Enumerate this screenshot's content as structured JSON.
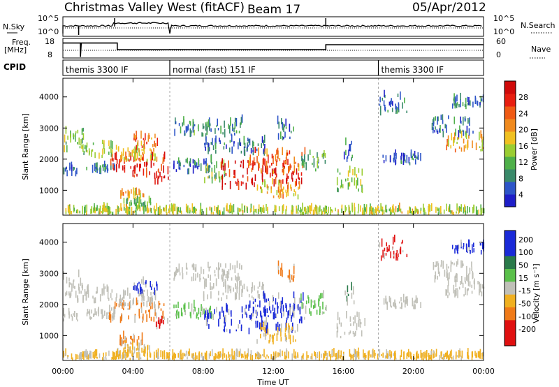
{
  "chart_data": {
    "type": "heatmap",
    "title": {
      "radar": "Christmas Valley West (fitACF)",
      "beam": "Beam 17",
      "date": "05/Apr/2012"
    },
    "summary": {
      "nsky_label": "N.Sky",
      "nsearch_label": "N.Search",
      "nsky_ticks": [
        "10^5",
        "10^0"
      ],
      "freq_label": [
        "Freq.",
        "[MHz]"
      ],
      "freq_ticks": [
        "18",
        "8"
      ],
      "nave_label": "Nave",
      "nave_ticks": [
        "60",
        "0"
      ],
      "cpid_label": "CPID",
      "cpid_segments": [
        {
          "label": "themis 3300 IF",
          "start_hr": 0,
          "end_hr": 6.1
        },
        {
          "label": "normal (fast) 151 IF",
          "start_hr": 6.1,
          "end_hr": 18
        },
        {
          "label": "themis 3300 IF",
          "start_hr": 18,
          "end_hr": 24
        }
      ],
      "freq_series_mhz": [
        [
          0,
          16.5
        ],
        [
          1,
          16.5
        ],
        [
          1,
          8.2
        ],
        [
          1.05,
          16.5
        ],
        [
          3.1,
          16.5
        ],
        [
          3.1,
          12.5
        ],
        [
          6.1,
          12.5
        ],
        [
          6.1,
          12.6
        ],
        [
          15,
          12.6
        ],
        [
          15,
          15.5
        ],
        [
          24,
          15.5
        ]
      ],
      "nsky_spikes_hr": [
        2.95,
        15.0
      ]
    },
    "panels": [
      {
        "ylabel": "Slant Range [km]",
        "ylim": [
          200,
          4600
        ],
        "yticks": [
          1000,
          2000,
          3000,
          4000
        ],
        "colorbar": {
          "label": "Power [dB]",
          "ticks": [
            4,
            8,
            12,
            16,
            20,
            24,
            28
          ]
        }
      },
      {
        "ylabel": "Slant Range [km]",
        "ylim": [
          200,
          4600
        ],
        "yticks": [
          1000,
          2000,
          3000,
          4000
        ],
        "colorbar": {
          "label": "Velocity [m s⁻¹]",
          "ticks": [
            200,
            100,
            50,
            15,
            -15,
            -50,
            -100,
            -200
          ]
        }
      }
    ],
    "xaxis": {
      "label": "Time UT",
      "range_hr": [
        0,
        24
      ],
      "tick_labels": [
        "00:00",
        "04:00",
        "08:00",
        "12:00",
        "16:00",
        "20:00",
        "00:00"
      ],
      "tick_hours": [
        0,
        4,
        8,
        12,
        16,
        20,
        24
      ]
    },
    "power_colors": [
      "#1e1ec8",
      "#2d55c8",
      "#3a8a6a",
      "#4fb04a",
      "#9acd32",
      "#f0c020",
      "#f08a1e",
      "#f05a14",
      "#e81e10",
      "#d00a0a"
    ],
    "velocity_colors": {
      "pos_high": "#1a2ad8",
      "pos_mid": "#2a7a4a",
      "pos_low": "#5ac04a",
      "ground": "#c0c0b8",
      "neg_low": "#f0b020",
      "neg_mid": "#f07a18",
      "neg_high": "#e01010"
    },
    "regions": [
      {
        "t0": 0,
        "t1": 1.3,
        "r0": 2200,
        "r1": 2900,
        "p": 11,
        "v": "ground"
      },
      {
        "t0": 0,
        "t1": 0.8,
        "r0": 1450,
        "r1": 1700,
        "p": 7,
        "v": "ground"
      },
      {
        "t0": 0.8,
        "t1": 2.8,
        "r0": 2000,
        "r1": 2500,
        "p": 13,
        "v": "ground"
      },
      {
        "t0": 1.3,
        "t1": 3.0,
        "r0": 1500,
        "r1": 1750,
        "p": 7,
        "v": "ground"
      },
      {
        "t0": 2.6,
        "t1": 5.8,
        "r0": 1400,
        "r1": 2000,
        "p": 25,
        "v": "neg_mid"
      },
      {
        "t0": 3.0,
        "t1": 5.4,
        "r0": 1900,
        "r1": 2300,
        "p": 16,
        "v": "ground"
      },
      {
        "t0": 4.0,
        "t1": 5.4,
        "r0": 2300,
        "r1": 2700,
        "p": 22,
        "v": "pos_high"
      },
      {
        "t0": 5.2,
        "t1": 6.0,
        "r0": 1150,
        "r1": 1600,
        "p": 27,
        "v": "neg_high"
      },
      {
        "t0": 3.2,
        "t1": 4.6,
        "r0": 650,
        "r1": 900,
        "p": 19,
        "v": "neg_mid"
      },
      {
        "t0": 3.4,
        "t1": 5.0,
        "r0": 400,
        "r1": 600,
        "p": 10,
        "v": "neg_low"
      },
      {
        "t0": 6.3,
        "t1": 10.2,
        "r0": 2700,
        "r1": 3200,
        "p": 8,
        "v": "ground"
      },
      {
        "t0": 8.0,
        "t1": 11.5,
        "r0": 2100,
        "r1": 2600,
        "p": 5,
        "v": "ground"
      },
      {
        "t0": 6.3,
        "t1": 8.5,
        "r0": 1500,
        "r1": 1900,
        "p": 6,
        "v": "pos_low"
      },
      {
        "t0": 8.0,
        "t1": 9.3,
        "r0": 1200,
        "r1": 1800,
        "p": 12,
        "v": "pos_high"
      },
      {
        "t0": 9.0,
        "t1": 13.6,
        "r0": 1000,
        "r1": 1900,
        "p": 27,
        "v": "pos_high"
      },
      {
        "t0": 10.5,
        "t1": 13.8,
        "r0": 1500,
        "r1": 2200,
        "p": 22,
        "v": "pos_high"
      },
      {
        "t0": 11.0,
        "t1": 13.5,
        "r0": 700,
        "r1": 1200,
        "p": 18,
        "v": "neg_low"
      },
      {
        "t0": 13.5,
        "t1": 15.0,
        "r0": 1600,
        "r1": 2200,
        "p": 10,
        "v": "pos_low"
      },
      {
        "t0": 12.2,
        "t1": 13.2,
        "r0": 2600,
        "r1": 3200,
        "p": 6,
        "v": "neg_mid"
      },
      {
        "t0": 15.6,
        "t1": 17.2,
        "r0": 900,
        "r1": 1600,
        "p": 12,
        "v": "ground"
      },
      {
        "t0": 16.0,
        "t1": 16.6,
        "r0": 1900,
        "r1": 2500,
        "p": 6,
        "v": "pos_mid"
      },
      {
        "t0": 18.2,
        "t1": 20.4,
        "r0": 1800,
        "r1": 2100,
        "p": 5,
        "v": "ground"
      },
      {
        "t0": 21.8,
        "t1": 24,
        "r0": 2200,
        "r1": 2700,
        "p": 17,
        "v": "ground"
      },
      {
        "t0": 21.0,
        "t1": 23.5,
        "r0": 2700,
        "r1": 3300,
        "p": 6,
        "v": "ground"
      },
      {
        "t0": 22.2,
        "t1": 24,
        "r0": 3600,
        "r1": 3900,
        "p": 7,
        "v": "pos_high"
      },
      {
        "t0": 18.0,
        "t1": 19.6,
        "r0": 3400,
        "r1": 4000,
        "p": 6,
        "v": "neg_high"
      },
      {
        "t0": 0,
        "t1": 24,
        "r0": 200,
        "r1": 350,
        "p": 14,
        "v": "neg_low"
      }
    ]
  }
}
